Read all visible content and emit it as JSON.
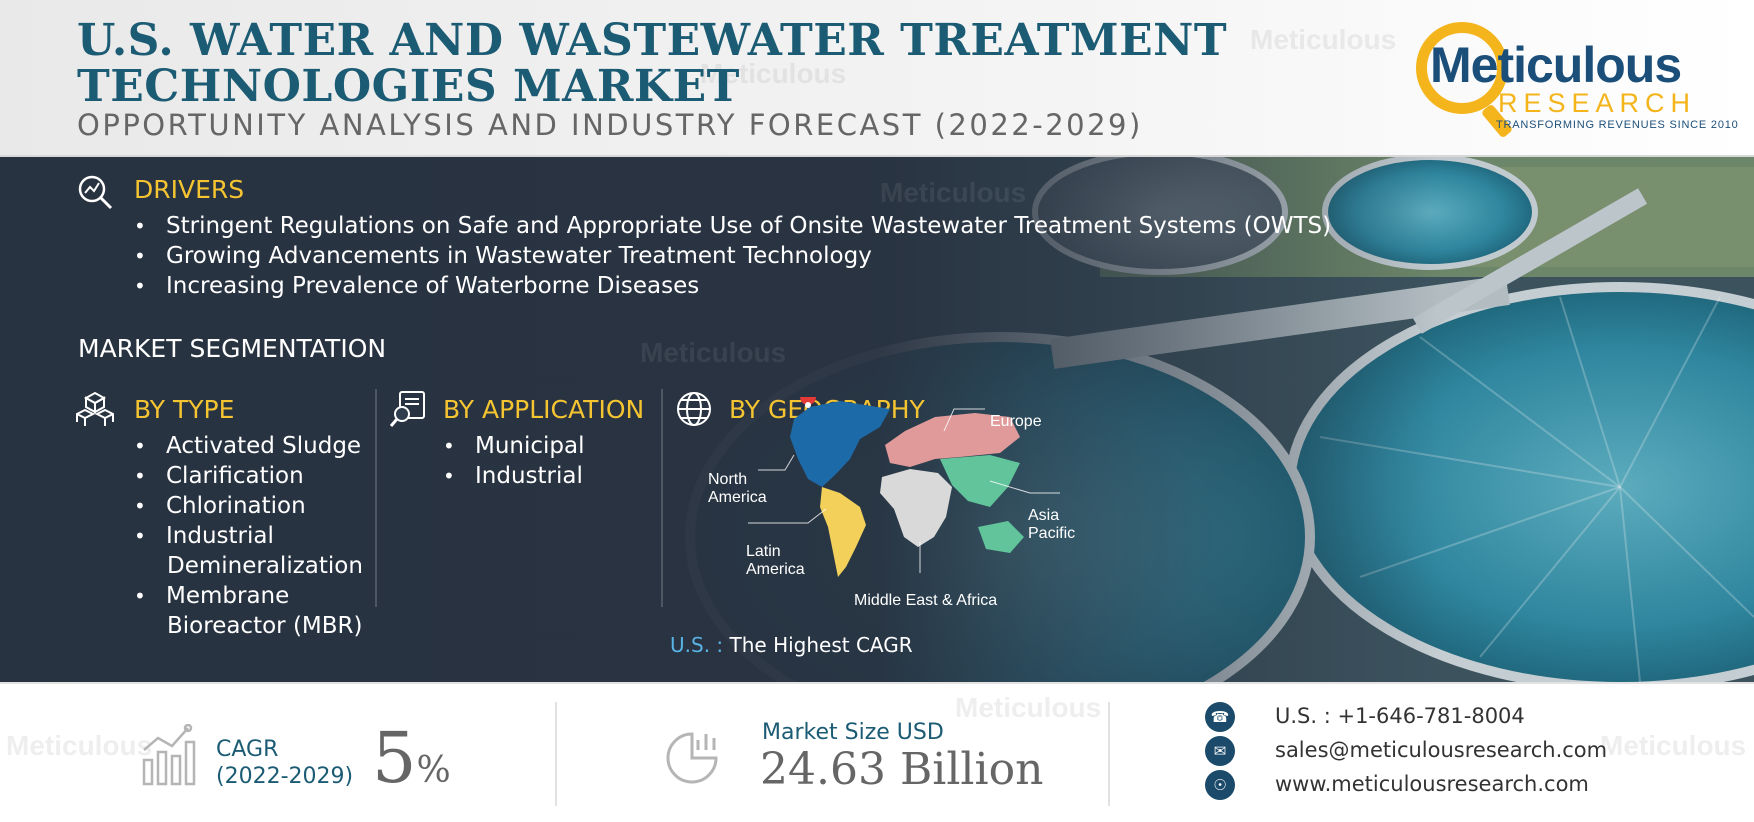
{
  "header": {
    "title_line1": "U.S. WATER AND WASTEWATER TREATMENT",
    "title_line2": "TECHNOLOGIES MARKET",
    "subtitle": "OPPORTUNITY ANALYSIS AND INDUSTRY FORECAST (2022-2029)"
  },
  "logo": {
    "name": "Meticulous",
    "sub": "RESEARCH",
    "tagline": "TRANSFORMING REVENUES SINCE 2010"
  },
  "watermark": {
    "text_top": "Meticulous",
    "text_bottom": "RESEARCH"
  },
  "drivers": {
    "heading": "DRIVERS",
    "items": [
      "Stringent Regulations on Safe and Appropriate Use of Onsite Wastewater Treatment Systems (OWTS)",
      "Growing Advancements in Wastewater Treatment Technology",
      "Increasing Prevalence of Waterborne Diseases"
    ]
  },
  "segmentation": {
    "title": "MARKET SEGMENTATION",
    "by_type": {
      "heading": "BY TYPE",
      "items": [
        "Activated Sludge",
        "Clarification",
        "Chlorination",
        "Industrial",
        "Demineralization",
        "Membrane",
        "Bioreactor (MBR)"
      ]
    },
    "by_application": {
      "heading": "BY APPLICATION",
      "items": [
        "Municipal",
        "Industrial"
      ]
    },
    "by_geography": {
      "heading": "BY GEOGRAPHY",
      "regions": {
        "north_america_1": "North",
        "north_america_2": "America",
        "europe": "Europe",
        "asia_pacific_1": "Asia",
        "asia_pacific_2": "Pacific",
        "latin_america_1": "Latin",
        "latin_america_2": "America",
        "mea": "Middle East & Africa"
      },
      "region_colors": {
        "north_america": "#1d6aa8",
        "europe": "#e09a9a",
        "asia_pacific": "#62c49a",
        "latin_america": "#f2d05a",
        "mea": "#d9d9d9"
      },
      "us_key": "U.S. :",
      "us_text": "The Highest CAGR"
    }
  },
  "footer": {
    "cagr_label_1": "CAGR",
    "cagr_label_2": "(2022-2029)",
    "cagr_value": "5",
    "cagr_unit": "%",
    "market_label": "Market Size USD",
    "market_value": "24.63 Billion",
    "contacts": {
      "phone": "U.S. : +1-646-781-8004",
      "email": "sales@meticulousresearch.com",
      "web": "www.meticulousresearch.com"
    },
    "icons": [
      "phone-icon",
      "mail-icon",
      "globe-icon",
      "chart-icon",
      "pie-icon"
    ]
  },
  "colors": {
    "title": "#1b5b73",
    "accent_yellow": "#f4c431",
    "panel": "#2f3d4c",
    "logo_blue": "#1b4f7a",
    "logo_gold": "#f4b51c"
  }
}
